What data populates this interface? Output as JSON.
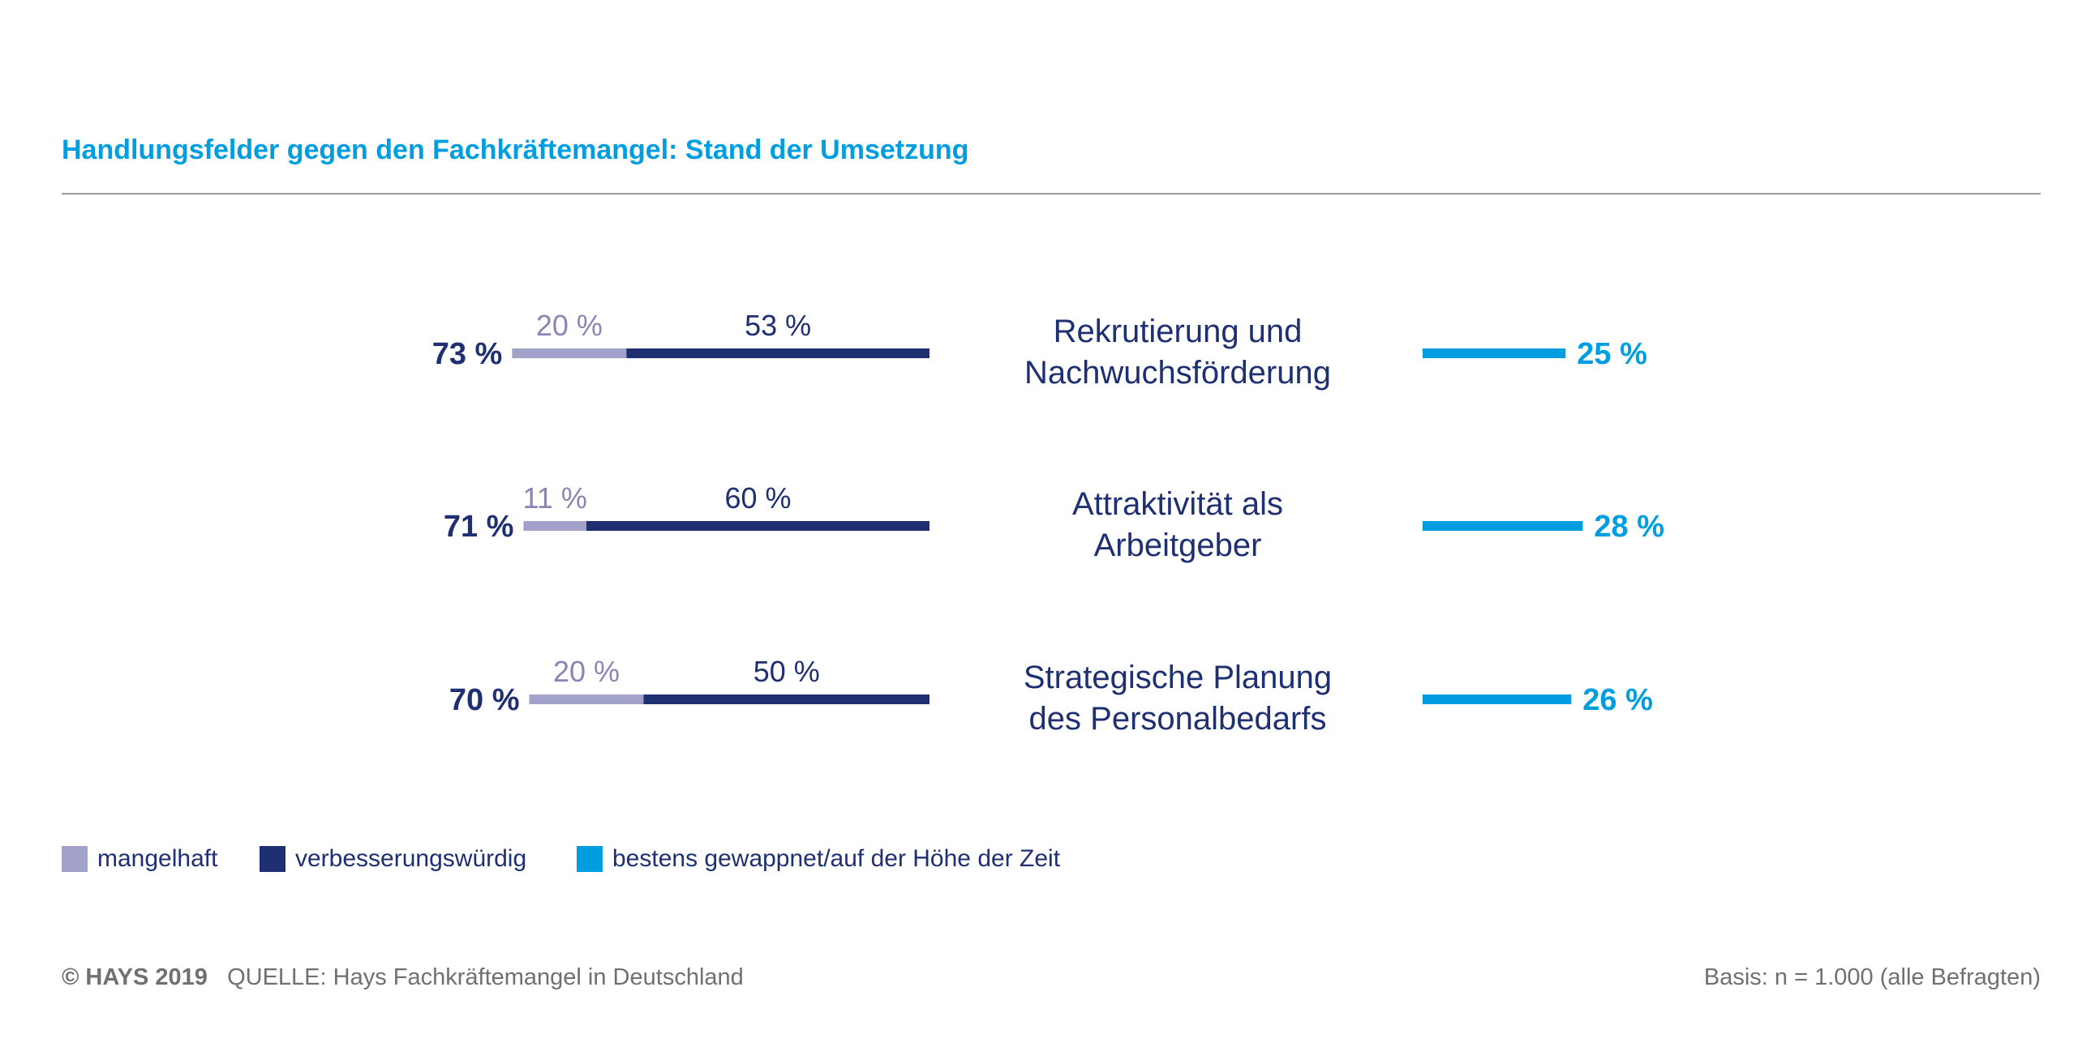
{
  "chart_data": {
    "type": "bar",
    "title": "Handlungsfelder gegen den Fachkräftemangel: Stand der Umsetzung",
    "categories": [
      [
        "Rekrutierung und",
        "Nachwuchsförderung"
      ],
      [
        "Attraktivität als",
        "Arbeitgeber"
      ],
      [
        "Strategische Planung",
        "des Personalbedarfs"
      ]
    ],
    "totals": [
      "73 %",
      "71 %",
      "70 %"
    ],
    "series": [
      {
        "name": "mangelhaft",
        "color": "#a2a1c9",
        "values": [
          20,
          11,
          20
        ],
        "labels": [
          "20 %",
          "11 %",
          "20 %"
        ]
      },
      {
        "name": "verbesserungswürdig",
        "color": "#1e2f72",
        "values": [
          53,
          60,
          50
        ],
        "labels": [
          "53 %",
          "60 %",
          "50 %"
        ]
      },
      {
        "name": "bestens gewappnet/auf der Höhe der Zeit",
        "color": "#009ee0",
        "values": [
          25,
          28,
          26
        ],
        "labels": [
          "25 %",
          "28 %",
          "26 %"
        ]
      }
    ]
  },
  "legend": {
    "items": [
      {
        "label": "mangelhaft",
        "color": "#a2a1c9"
      },
      {
        "label": "verbesserungswürdig",
        "color": "#1e2f72"
      },
      {
        "label": "bestens gewappnet/auf der Höhe der Zeit",
        "color": "#009ee0"
      }
    ]
  },
  "footer": {
    "brand": "© HAYS 2019",
    "source": "QUELLE: Hays Fachkräftemangel in Deutschland",
    "basis": "Basis: n = 1.000 (alle Befragten)"
  }
}
